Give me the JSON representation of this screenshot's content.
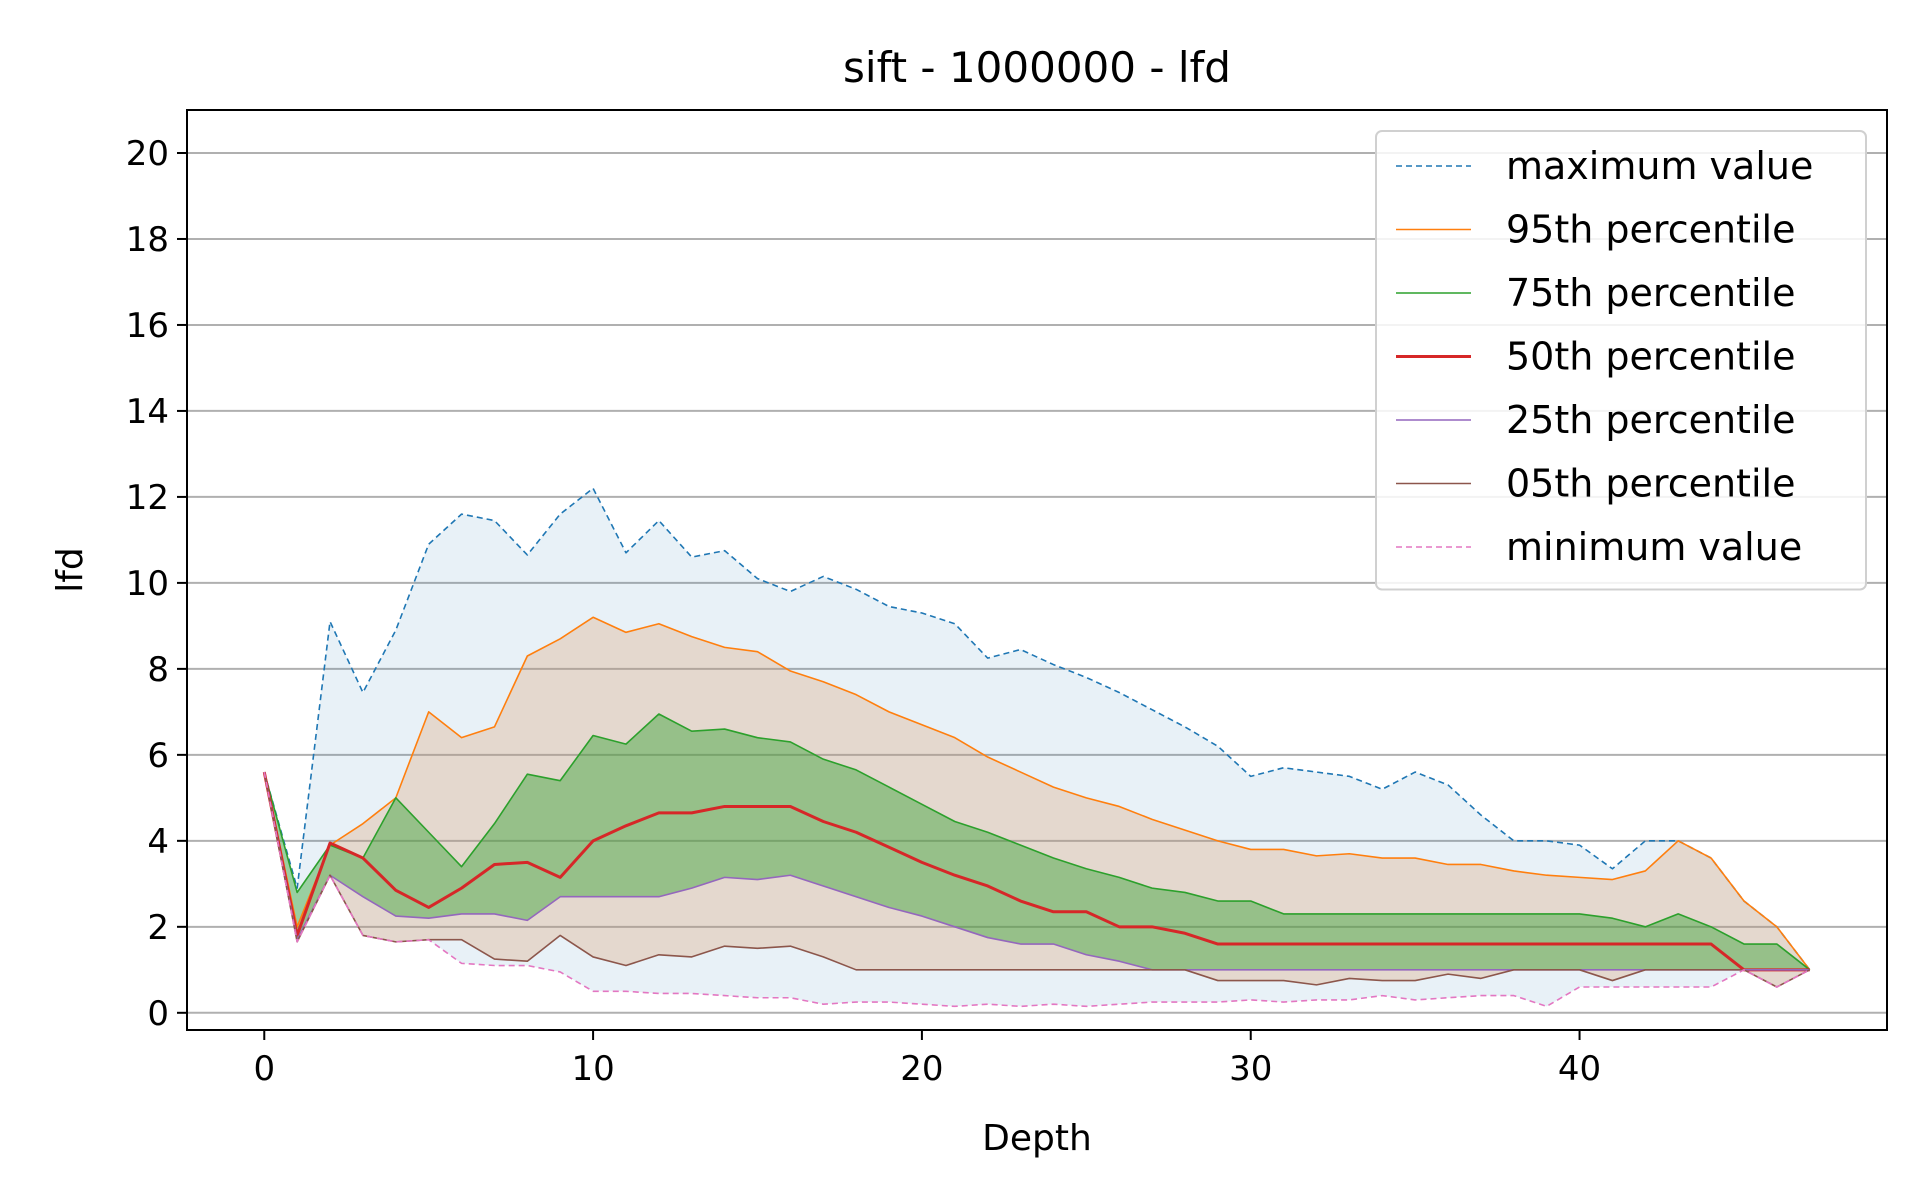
{
  "chart_data": {
    "type": "line",
    "title": "sift - 1000000 - lfd",
    "xlabel": "Depth",
    "ylabel": "lfd",
    "xlim": [
      -2.35,
      49.35
    ],
    "ylim": [
      -0.4,
      21
    ],
    "xticks": [
      0,
      10,
      20,
      30,
      40
    ],
    "yticks": [
      0,
      2,
      4,
      6,
      8,
      10,
      12,
      14,
      16,
      18,
      20
    ],
    "grid": "horizontal",
    "legend_position": "top-right",
    "x": [
      0,
      1,
      2,
      3,
      4,
      5,
      6,
      7,
      8,
      9,
      10,
      11,
      12,
      13,
      14,
      15,
      16,
      17,
      18,
      19,
      20,
      21,
      22,
      23,
      24,
      25,
      26,
      27,
      28,
      29,
      30,
      31,
      32,
      33,
      34,
      35,
      36,
      37,
      38,
      39,
      40,
      41,
      42,
      43,
      44,
      45,
      46,
      47
    ],
    "series": [
      {
        "name": "maximum value",
        "color": "#1f77b4",
        "style": "dashed",
        "values": [
          5.6,
          2.9,
          9.1,
          7.45,
          8.9,
          10.9,
          11.6,
          11.45,
          10.65,
          11.6,
          12.2,
          10.7,
          11.45,
          10.6,
          10.75,
          10.1,
          9.8,
          10.15,
          9.85,
          9.45,
          9.3,
          9.05,
          8.25,
          8.45,
          8.1,
          7.8,
          7.45,
          7.05,
          6.65,
          6.2,
          5.5,
          5.7,
          5.6,
          5.5,
          5.2,
          5.6,
          5.3,
          4.6,
          4.0,
          4.0,
          3.9,
          3.35,
          4.0,
          4.0,
          3.6,
          2.6,
          2.0,
          1.0
        ]
      },
      {
        "name": "95th percentile",
        "color": "#ff7f0e",
        "style": "solid",
        "values": [
          5.6,
          2.0,
          3.9,
          4.4,
          5.0,
          7.0,
          6.4,
          6.65,
          8.3,
          8.7,
          9.2,
          8.85,
          9.05,
          8.75,
          8.5,
          8.4,
          7.95,
          7.7,
          7.4,
          7.0,
          6.7,
          6.4,
          5.95,
          5.6,
          5.25,
          5.0,
          4.8,
          4.5,
          4.25,
          4.0,
          3.8,
          3.8,
          3.65,
          3.7,
          3.6,
          3.6,
          3.45,
          3.45,
          3.3,
          3.2,
          3.15,
          3.1,
          3.3,
          4.0,
          3.6,
          2.6,
          2.0,
          1.0
        ]
      },
      {
        "name": "75th percentile",
        "color": "#2ca02c",
        "style": "solid",
        "values": [
          5.6,
          2.8,
          3.9,
          3.6,
          5.0,
          4.2,
          3.4,
          4.4,
          5.55,
          5.4,
          6.45,
          6.25,
          6.95,
          6.55,
          6.6,
          6.4,
          6.3,
          5.9,
          5.65,
          5.25,
          4.85,
          4.45,
          4.2,
          3.9,
          3.6,
          3.35,
          3.15,
          2.9,
          2.8,
          2.6,
          2.6,
          2.3,
          2.3,
          2.3,
          2.3,
          2.3,
          2.3,
          2.3,
          2.3,
          2.3,
          2.3,
          2.2,
          2.0,
          2.3,
          2.0,
          1.6,
          1.6,
          1.0
        ]
      },
      {
        "name": "50th percentile",
        "color": "#d62728",
        "style": "solid",
        "values": [
          5.6,
          1.8,
          3.95,
          3.6,
          2.85,
          2.45,
          2.9,
          3.45,
          3.5,
          3.15,
          4.0,
          4.35,
          4.65,
          4.65,
          4.8,
          4.8,
          4.8,
          4.45,
          4.2,
          3.85,
          3.5,
          3.2,
          2.95,
          2.6,
          2.35,
          2.35,
          2.0,
          2.0,
          1.85,
          1.6,
          1.6,
          1.6,
          1.6,
          1.6,
          1.6,
          1.6,
          1.6,
          1.6,
          1.6,
          1.6,
          1.6,
          1.6,
          1.6,
          1.6,
          1.6,
          1.0,
          1.0,
          1.0
        ]
      },
      {
        "name": "25th percentile",
        "color": "#9467bd",
        "style": "solid",
        "values": [
          5.6,
          1.7,
          3.2,
          2.7,
          2.25,
          2.2,
          2.3,
          2.3,
          2.15,
          2.7,
          2.7,
          2.7,
          2.7,
          2.9,
          3.15,
          3.1,
          3.2,
          2.95,
          2.7,
          2.45,
          2.25,
          2.0,
          1.75,
          1.6,
          1.6,
          1.35,
          1.2,
          1.0,
          1.0,
          1.0,
          1.0,
          1.0,
          1.0,
          1.0,
          1.0,
          1.0,
          1.0,
          1.0,
          1.0,
          1.0,
          1.0,
          1.0,
          1.0,
          1.0,
          1.0,
          1.0,
          1.0,
          1.0
        ]
      },
      {
        "name": "05th percentile",
        "color": "#8c564b",
        "style": "solid",
        "values": [
          5.6,
          1.65,
          3.2,
          1.8,
          1.65,
          1.7,
          1.7,
          1.25,
          1.2,
          1.8,
          1.3,
          1.1,
          1.35,
          1.3,
          1.55,
          1.5,
          1.55,
          1.3,
          1.0,
          1.0,
          1.0,
          1.0,
          1.0,
          1.0,
          1.0,
          1.0,
          1.0,
          1.0,
          1.0,
          0.75,
          0.75,
          0.75,
          0.65,
          0.8,
          0.75,
          0.75,
          0.9,
          0.8,
          1.0,
          1.0,
          1.0,
          0.75,
          1.0,
          1.0,
          1.0,
          1.0,
          0.6,
          1.0
        ]
      },
      {
        "name": "minimum value",
        "color": "#e377c2",
        "style": "dashed",
        "values": [
          5.6,
          1.65,
          3.2,
          1.8,
          1.65,
          1.7,
          1.15,
          1.1,
          1.1,
          0.95,
          0.5,
          0.5,
          0.45,
          0.45,
          0.4,
          0.35,
          0.35,
          0.2,
          0.25,
          0.25,
          0.2,
          0.15,
          0.2,
          0.15,
          0.2,
          0.15,
          0.2,
          0.25,
          0.25,
          0.25,
          0.3,
          0.25,
          0.3,
          0.3,
          0.4,
          0.3,
          0.35,
          0.4,
          0.4,
          0.15,
          0.6,
          0.6,
          0.6,
          0.6,
          0.6,
          1.0,
          0.6,
          1.0
        ]
      }
    ],
    "bands": [
      {
        "upper": "maximum value",
        "lower": "minimum value",
        "color": "#1f77b4",
        "opacity": 0.1
      },
      {
        "upper": "95th percentile",
        "lower": "05th percentile",
        "color": "#d9a070",
        "opacity": 0.3
      },
      {
        "upper": "75th percentile",
        "lower": "25th percentile",
        "color": "#2ca02c",
        "opacity": 0.42
      }
    ]
  }
}
